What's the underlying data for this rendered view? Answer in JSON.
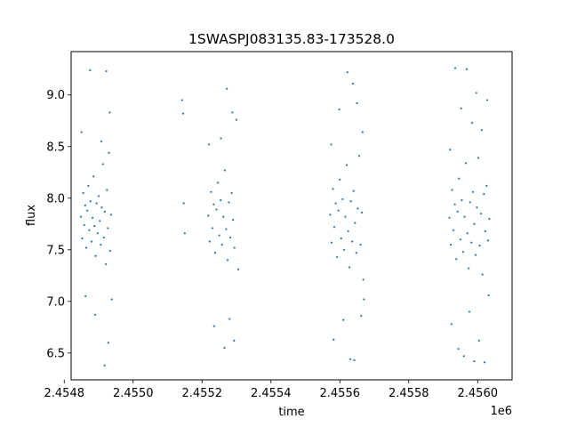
{
  "chart_data": {
    "type": "scatter",
    "title": "1SWASPJ083135.83-173528.0",
    "xlabel": "time",
    "ylabel": "flux",
    "x_offset_label": "1e6",
    "xlim": [
      2454820,
      2456100
    ],
    "ylim": [
      6.24,
      9.42
    ],
    "x_ticks": [
      2454800,
      2455000,
      2455200,
      2455400,
      2455600,
      2455800,
      2456000
    ],
    "x_tick_labels": [
      "2.4548",
      "2.4550",
      "2.4552",
      "2.4554",
      "2.4556",
      "2.4558",
      "2.4560"
    ],
    "y_ticks": [
      6.5,
      7.0,
      7.5,
      8.0,
      8.5,
      9.0
    ],
    "y_tick_labels": [
      "6.5",
      "7.0",
      "7.5",
      "8.0",
      "8.5",
      "9.0"
    ],
    "grid": false,
    "marker_color": "#1f77b4",
    "series": [
      {
        "points": [
          [
            2454848,
            7.82
          ],
          [
            2454852,
            7.61
          ],
          [
            2454855,
            8.05
          ],
          [
            2454858,
            7.74
          ],
          [
            2454861,
            7.93
          ],
          [
            2454864,
            7.52
          ],
          [
            2454867,
            7.88
          ],
          [
            2454870,
            8.12
          ],
          [
            2454873,
            7.69
          ],
          [
            2454876,
            7.97
          ],
          [
            2454879,
            7.58
          ],
          [
            2454882,
            7.81
          ],
          [
            2454885,
            8.21
          ],
          [
            2454888,
            7.73
          ],
          [
            2454891,
            7.44
          ],
          [
            2454894,
            7.95
          ],
          [
            2454897,
            7.66
          ],
          [
            2454900,
            8.02
          ],
          [
            2454903,
            7.78
          ],
          [
            2454906,
            7.55
          ],
          [
            2454909,
            7.91
          ],
          [
            2454912,
            8.33
          ],
          [
            2454915,
            7.62
          ],
          [
            2454918,
            7.87
          ],
          [
            2454921,
            7.36
          ],
          [
            2454924,
            8.08
          ],
          [
            2454927,
            7.71
          ],
          [
            2454930,
            8.44
          ],
          [
            2454933,
            7.49
          ],
          [
            2454936,
            7.84
          ],
          [
            2454850,
            8.64
          ],
          [
            2454862,
            7.05
          ],
          [
            2454875,
            9.24
          ],
          [
            2454890,
            6.87
          ],
          [
            2454908,
            8.55
          ],
          [
            2454917,
            6.38
          ],
          [
            2454922,
            9.23
          ],
          [
            2454928,
            6.6
          ],
          [
            2454932,
            8.83
          ],
          [
            2454938,
            7.02
          ]
        ]
      },
      {
        "points": [
          [
            2455142,
            8.95
          ],
          [
            2455145,
            8.82
          ],
          [
            2455147,
            7.95
          ],
          [
            2455150,
            7.66
          ]
        ]
      },
      {
        "points": [
          [
            2455218,
            7.83
          ],
          [
            2455222,
            7.58
          ],
          [
            2455226,
            8.06
          ],
          [
            2455230,
            7.71
          ],
          [
            2455234,
            7.94
          ],
          [
            2455238,
            7.47
          ],
          [
            2455242,
            7.89
          ],
          [
            2455246,
            8.15
          ],
          [
            2455250,
            7.64
          ],
          [
            2455254,
            7.98
          ],
          [
            2455258,
            7.55
          ],
          [
            2455262,
            7.82
          ],
          [
            2455266,
            8.27
          ],
          [
            2455270,
            7.7
          ],
          [
            2455274,
            7.4
          ],
          [
            2455278,
            7.96
          ],
          [
            2455282,
            7.62
          ],
          [
            2455286,
            8.05
          ],
          [
            2455290,
            7.79
          ],
          [
            2455294,
            7.52
          ],
          [
            2455220,
            8.52
          ],
          [
            2455235,
            6.76
          ],
          [
            2455255,
            8.58
          ],
          [
            2455265,
            6.55
          ],
          [
            2455272,
            9.06
          ],
          [
            2455280,
            6.83
          ],
          [
            2455288,
            8.83
          ],
          [
            2455293,
            6.62
          ],
          [
            2455300,
            8.76
          ],
          [
            2455305,
            7.31
          ]
        ]
      },
      {
        "points": [
          [
            2455572,
            7.84
          ],
          [
            2455576,
            7.57
          ],
          [
            2455580,
            8.09
          ],
          [
            2455584,
            7.72
          ],
          [
            2455588,
            7.95
          ],
          [
            2455592,
            7.43
          ],
          [
            2455596,
            7.88
          ],
          [
            2455600,
            8.18
          ],
          [
            2455604,
            7.61
          ],
          [
            2455608,
            7.99
          ],
          [
            2455612,
            7.5
          ],
          [
            2455616,
            7.82
          ],
          [
            2455620,
            8.32
          ],
          [
            2455624,
            7.68
          ],
          [
            2455628,
            7.33
          ],
          [
            2455632,
            7.97
          ],
          [
            2455636,
            7.58
          ],
          [
            2455640,
            8.07
          ],
          [
            2455644,
            7.76
          ],
          [
            2455648,
            7.47
          ],
          [
            2455652,
            7.9
          ],
          [
            2455656,
            8.41
          ],
          [
            2455660,
            7.55
          ],
          [
            2455664,
            7.86
          ],
          [
            2455668,
            7.21
          ],
          [
            2455575,
            8.52
          ],
          [
            2455582,
            6.63
          ],
          [
            2455598,
            8.86
          ],
          [
            2455610,
            6.82
          ],
          [
            2455622,
            9.22
          ],
          [
            2455630,
            6.44
          ],
          [
            2455638,
            9.11
          ],
          [
            2455642,
            6.43
          ],
          [
            2455650,
            8.92
          ],
          [
            2455662,
            6.86
          ],
          [
            2455666,
            8.64
          ],
          [
            2455670,
            7.02
          ]
        ]
      },
      {
        "points": [
          [
            2455918,
            7.81
          ],
          [
            2455922,
            7.55
          ],
          [
            2455926,
            8.08
          ],
          [
            2455930,
            7.69
          ],
          [
            2455934,
            7.94
          ],
          [
            2455938,
            7.41
          ],
          [
            2455942,
            7.87
          ],
          [
            2455946,
            8.19
          ],
          [
            2455950,
            7.6
          ],
          [
            2455954,
            7.98
          ],
          [
            2455958,
            7.48
          ],
          [
            2455962,
            7.82
          ],
          [
            2455966,
            8.34
          ],
          [
            2455970,
            7.66
          ],
          [
            2455974,
            7.32
          ],
          [
            2455978,
            7.96
          ],
          [
            2455982,
            7.57
          ],
          [
            2455986,
            8.06
          ],
          [
            2455990,
            7.75
          ],
          [
            2455994,
            7.45
          ],
          [
            2455998,
            7.91
          ],
          [
            2456002,
            8.39
          ],
          [
            2456006,
            7.54
          ],
          [
            2456010,
            7.85
          ],
          [
            2456014,
            7.26
          ],
          [
            2456018,
            8.04
          ],
          [
            2456022,
            7.68
          ],
          [
            2456026,
            8.12
          ],
          [
            2456030,
            7.59
          ],
          [
            2456034,
            7.8
          ],
          [
            2455920,
            8.47
          ],
          [
            2455924,
            6.78
          ],
          [
            2455935,
            9.26
          ],
          [
            2455944,
            6.54
          ],
          [
            2455952,
            8.87
          ],
          [
            2455960,
            6.47
          ],
          [
            2455968,
            9.25
          ],
          [
            2455976,
            6.9
          ],
          [
            2455984,
            8.73
          ],
          [
            2455990,
            6.42
          ],
          [
            2455996,
            9.02
          ],
          [
            2456004,
            6.62
          ],
          [
            2456012,
            8.66
          ],
          [
            2456020,
            6.41
          ],
          [
            2456028,
            8.95
          ],
          [
            2456032,
            7.06
          ]
        ]
      }
    ]
  }
}
